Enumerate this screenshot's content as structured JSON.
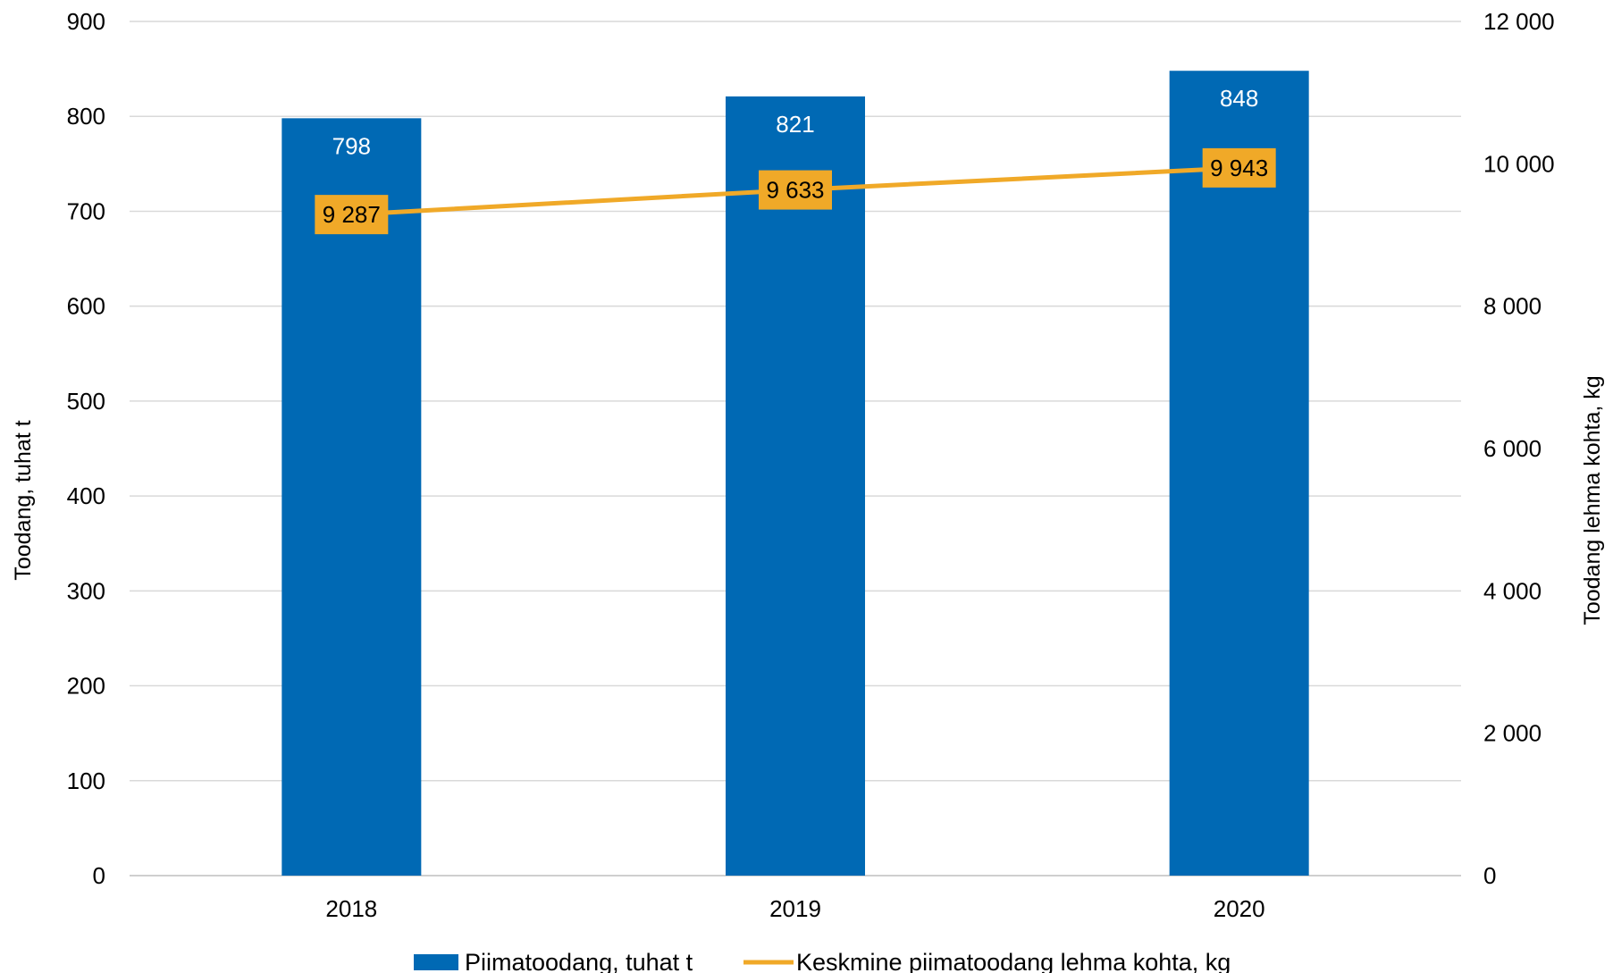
{
  "chart_data": {
    "type": "bar",
    "categories": [
      "2018",
      "2019",
      "2020"
    ],
    "series": [
      {
        "name": "Piimatoodang, tuhat t",
        "type": "bar",
        "axis": "left",
        "values": [
          798,
          821,
          848
        ],
        "labels": [
          "798",
          "821",
          "848"
        ],
        "color": "#0069B4"
      },
      {
        "name": "Keskmine piimatoodang lehma kohta, kg",
        "type": "line",
        "axis": "right",
        "values": [
          9287,
          9633,
          9943
        ],
        "labels": [
          "9 287",
          "9 633",
          "9 943"
        ],
        "color": "#F0A928"
      }
    ],
    "ylabel": "Toodang, tuhat t",
    "ylabel_right": "Toodang lehma kohta, kg",
    "ylim": [
      0,
      900
    ],
    "ylim_right": [
      0,
      12000
    ],
    "yticks_left": [
      "0",
      "100",
      "200",
      "300",
      "400",
      "500",
      "600",
      "700",
      "800",
      "900"
    ],
    "yticks_right": [
      "0",
      "2 000",
      "4 000",
      "6 000",
      "8 000",
      "10 000",
      "12 000"
    ],
    "grid": true,
    "legend": "bottom"
  }
}
